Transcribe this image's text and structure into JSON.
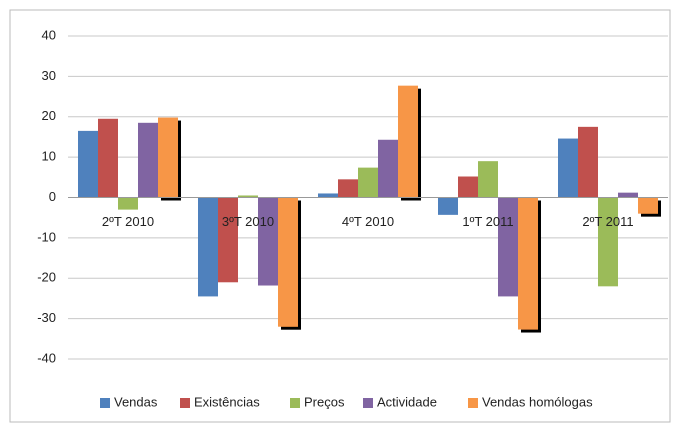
{
  "chart_data": {
    "type": "bar",
    "categories": [
      "2ºT 2010",
      "3ºT 2010",
      "4ºT 2010",
      "1ºT 2011",
      "2ºT 2011"
    ],
    "series": [
      {
        "name": "Vendas",
        "color": "#4f81bd",
        "values": [
          16.5,
          -24.5,
          1,
          -4.3,
          14.6
        ]
      },
      {
        "name": "Existências",
        "color": "#c0504d",
        "values": [
          19.5,
          -21,
          4.5,
          5.2,
          17.5
        ]
      },
      {
        "name": "Preços",
        "color": "#9bbb59",
        "values": [
          -3,
          0.5,
          7.4,
          9,
          -22
        ]
      },
      {
        "name": "Actividade",
        "color": "#8064a2",
        "values": [
          18.5,
          -21.8,
          14.3,
          -24.5,
          1.2
        ]
      },
      {
        "name": "Vendas homólogas",
        "color": "#f79646",
        "values": [
          19.8,
          -32,
          27.7,
          -32.7,
          -4
        ]
      }
    ],
    "ylim": [
      -40,
      40
    ],
    "yticks": [
      -40,
      -30,
      -20,
      -10,
      0,
      10,
      20,
      30,
      40
    ],
    "grid": true,
    "legend": "bottom"
  }
}
